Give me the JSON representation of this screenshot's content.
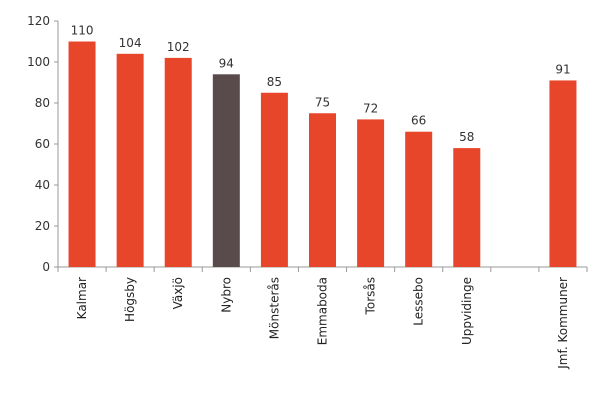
{
  "chart_data": {
    "type": "bar",
    "title": "",
    "xlabel": "",
    "ylabel": "",
    "categories": [
      "Kalmar",
      "Högsby",
      "Växjö",
      "Nybro",
      "Mönsterås",
      "Emmaboda",
      "Torsås",
      "Lessebo",
      "Uppvidinge",
      "",
      "Jmf. Kommuner"
    ],
    "values": [
      110,
      104,
      102,
      94,
      85,
      75,
      72,
      66,
      58,
      null,
      91
    ],
    "data_labels": [
      "110",
      "104",
      "102",
      "94",
      "85",
      "75",
      "72",
      "66",
      "58",
      "",
      "91"
    ],
    "highlight_index": 3,
    "ylim": [
      0,
      120
    ],
    "yticks": [
      0,
      20,
      40,
      60,
      80,
      100,
      120
    ],
    "grid": false,
    "legend": "none",
    "colors": {
      "bar": "#e8462b",
      "highlight": "#594a4c",
      "axis": "#999999"
    }
  }
}
